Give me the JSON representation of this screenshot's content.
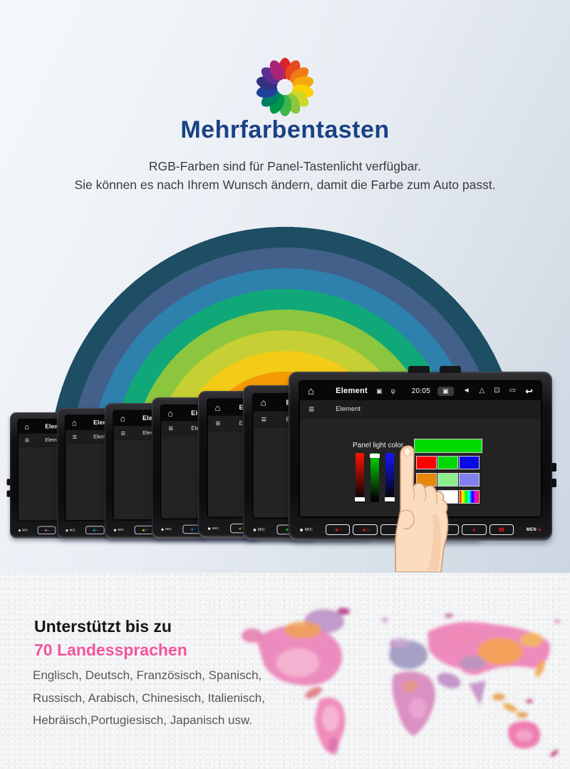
{
  "header": {
    "title": "Mehrfarbentasten",
    "title_color": "#1a4284",
    "subtitle_line1": "RGB-Farben sind für Panel-Tastenlicht verfügbar.",
    "subtitle_line2": "Sie können es nach Ihrem Wunsch ändern, damit die Farbe zum Auto passt."
  },
  "colorwheel": {
    "petals": [
      "#d8232a",
      "#e8491f",
      "#f07c16",
      "#f6a80b",
      "#fbd105",
      "#cdd829",
      "#8cc63f",
      "#3cb54a",
      "#009649",
      "#007d64",
      "#21409a",
      "#33307f",
      "#5f2d91",
      "#a82574"
    ]
  },
  "rainbow": {
    "bands_inner_to_outer": [
      "#e10d72",
      "#f04a45",
      "#f59c05",
      "#f2cc16",
      "#c6cf33",
      "#8cc63f",
      "#10a878",
      "#2e80ad",
      "#42608a",
      "#1d4e63"
    ]
  },
  "devices": {
    "count": 7,
    "status_title": "Element",
    "menu_title": "Element",
    "time": "20:05",
    "mic_label": "MIC",
    "menu_button_label": "MEN",
    "status_left_icons": [
      "sd-card",
      "usb"
    ],
    "status_right_icons": [
      "camera",
      "volume",
      "eject",
      "display",
      "cassette",
      "back"
    ],
    "panel_buttons": [
      "vol-down",
      "vol-up",
      "blank",
      "blank",
      "back",
      "pin",
      "phone"
    ],
    "panel_light_colors": [
      "#e26ec9",
      "#00b9d4",
      "#d5c713",
      "#1b78d8",
      "#e07c12",
      "#16c22f",
      "#e81414"
    ]
  },
  "panel_ui": {
    "label": "Panel light color",
    "preview_color": "#00dc00",
    "sliders": [
      {
        "name": "red",
        "color": "#ff1400",
        "thumb": "bottom"
      },
      {
        "name": "green",
        "color": "#00e400",
        "thumb": "top"
      },
      {
        "name": "blue",
        "color": "#1414ff",
        "thumb": "bottom"
      }
    ],
    "swatches": [
      "#fd0000",
      "#00d800",
      "#0a0ae4",
      "#e8870a",
      "#8cef8c",
      "#8181ee",
      "#fdfd00",
      "#ffffff",
      "rainbow"
    ]
  },
  "footer": {
    "heading_line1": "Unterstützt bis zu",
    "heading_line2": "70 Landessprachen",
    "heading2_color": "#f4549e",
    "languages_line1": "Englisch, Deutsch, Französisch, Spanisch,",
    "languages_line2": "Russisch, Arabisch, Chinesisch, Italienisch,",
    "languages_line3": "Hebräisch,Portugiesisch, Japanisch usw."
  }
}
